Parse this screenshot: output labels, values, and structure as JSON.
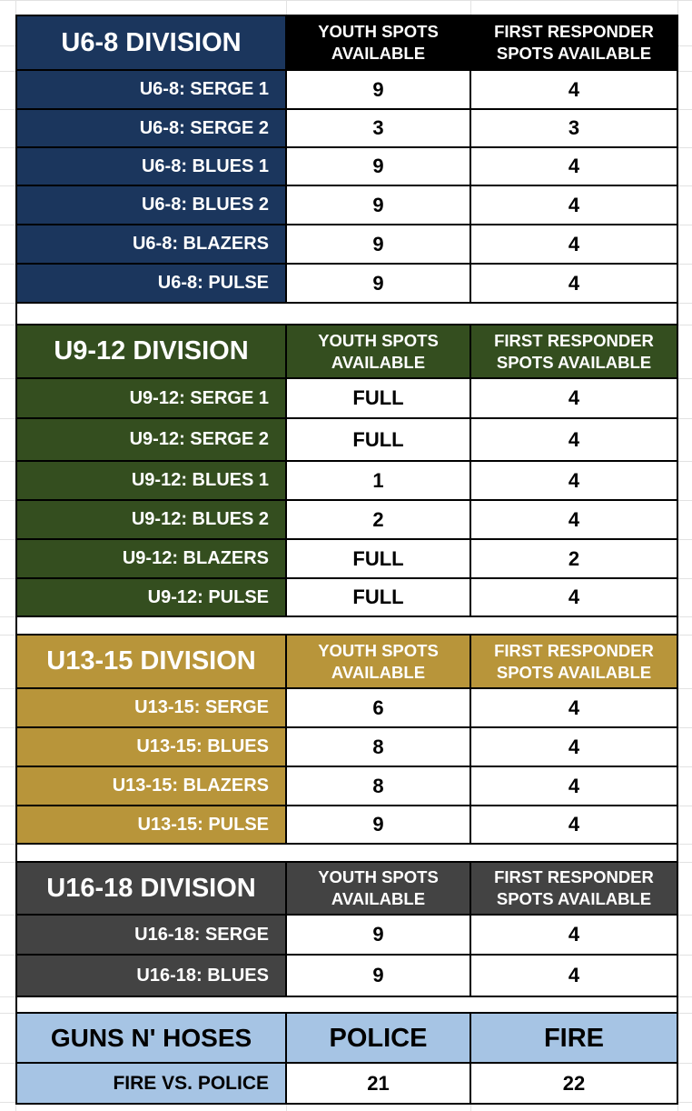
{
  "sections": [
    {
      "title": "U6-8 DIVISION",
      "color": "#1b365d",
      "header_bg": "#000000",
      "youth_header": "YOUTH SPOTS\nAVAILABLE",
      "responder_header": "FIRST RESPONDER\nSPOTS AVAILABLE",
      "rows": [
        {
          "team": "U6-8: SERGE 1",
          "youth": "9",
          "responder": "4"
        },
        {
          "team": "U6-8: SERGE 2",
          "youth": "3",
          "responder": "3"
        },
        {
          "team": "U6-8: BLUES 1",
          "youth": "9",
          "responder": "4"
        },
        {
          "team": "U6-8: BLUES 2",
          "youth": "9",
          "responder": "4"
        },
        {
          "team": "U6-8: BLAZERS",
          "youth": "9",
          "responder": "4"
        },
        {
          "team": "U6-8: PULSE",
          "youth": "9",
          "responder": "4"
        }
      ]
    },
    {
      "title": "U9-12 DIVISION",
      "color": "#344e1f",
      "header_bg": "#344e1f",
      "youth_header": "YOUTH SPOTS\nAVAILABLE",
      "responder_header": "FIRST RESPONDER\nSPOTS AVAILABLE",
      "rows": [
        {
          "team": "U9-12: SERGE 1",
          "youth": "FULL",
          "responder": "4"
        },
        {
          "team": "U9-12: SERGE 2",
          "youth": "FULL",
          "responder": "4"
        },
        {
          "team": "U9-12: BLUES 1",
          "youth": "1",
          "responder": "4"
        },
        {
          "team": "U9-12: BLUES 2",
          "youth": "2",
          "responder": "4"
        },
        {
          "team": "U9-12: BLAZERS",
          "youth": "FULL",
          "responder": "2"
        },
        {
          "team": "U9-12: PULSE",
          "youth": "FULL",
          "responder": "4"
        }
      ]
    },
    {
      "title": "U13-15 DIVISION",
      "color": "#b8953a",
      "header_bg": "#b8953a",
      "youth_header": "YOUTH SPOTS\nAVAILABLE",
      "responder_header": "FIRST RESPONDER\nSPOTS AVAILABLE",
      "rows": [
        {
          "team": "U13-15: SERGE",
          "youth": "6",
          "responder": "4"
        },
        {
          "team": "U13-15: BLUES",
          "youth": "8",
          "responder": "4"
        },
        {
          "team": "U13-15: BLAZERS",
          "youth": "8",
          "responder": "4"
        },
        {
          "team": "U13-15: PULSE",
          "youth": "9",
          "responder": "4"
        }
      ]
    },
    {
      "title": "U16-18 DIVISION",
      "color": "#434343",
      "header_bg": "#434343",
      "youth_header": "YOUTH SPOTS\nAVAILABLE",
      "responder_header": "FIRST RESPONDER\nSPOTS AVAILABLE",
      "rows": [
        {
          "team": "U16-18: SERGE",
          "youth": "9",
          "responder": "4"
        },
        {
          "team": "U16-18: BLUES",
          "youth": "9",
          "responder": "4"
        }
      ]
    }
  ],
  "guns_n_hoses": {
    "title": "GUNS N' HOSES",
    "color": "#a6c4e4",
    "police_header": "POLICE",
    "fire_header": "FIRE",
    "row": {
      "label": "FIRE VS. POLICE",
      "police": "21",
      "fire": "22"
    }
  }
}
